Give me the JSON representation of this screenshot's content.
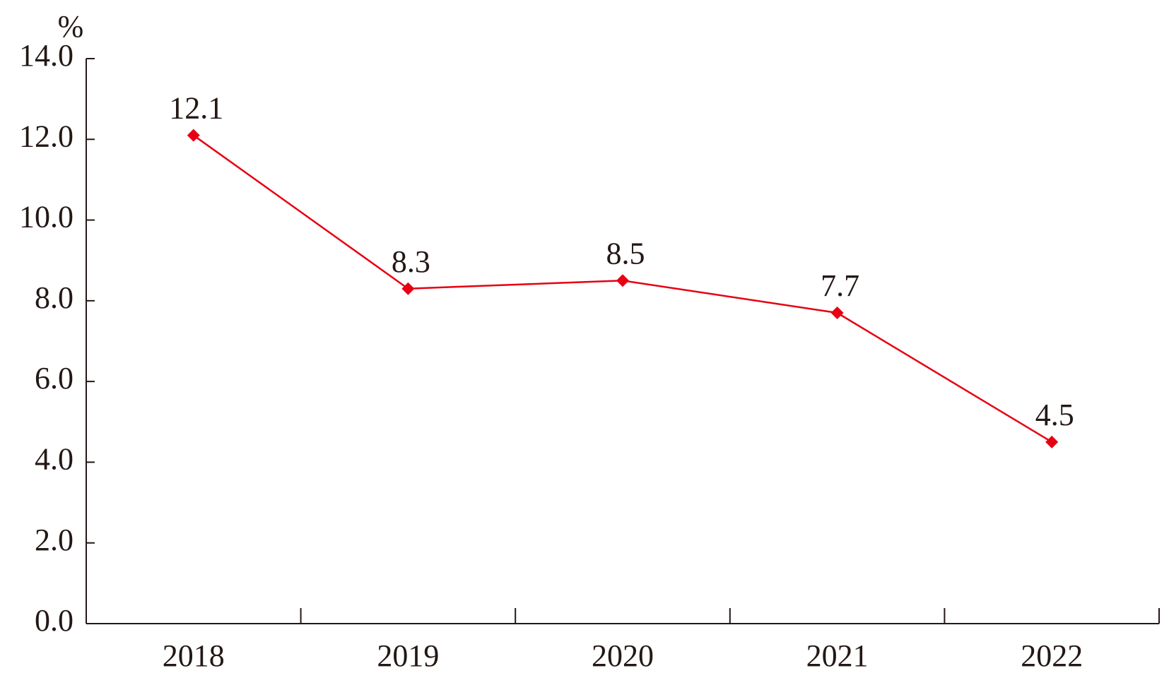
{
  "chart_data": {
    "type": "line",
    "ylabel": "%",
    "categories": [
      "2018",
      "2019",
      "2020",
      "2021",
      "2022"
    ],
    "series": [
      {
        "name": "",
        "color": "#e60012",
        "values": [
          12.1,
          8.3,
          8.5,
          7.7,
          4.5
        ]
      }
    ],
    "ylim": [
      0,
      14
    ],
    "yticks": [
      {
        "value": 0,
        "label": "0.0"
      },
      {
        "value": 2,
        "label": "2.0"
      },
      {
        "value": 4,
        "label": "4.0"
      },
      {
        "value": 6,
        "label": "6.0"
      },
      {
        "value": 8,
        "label": "8.0"
      },
      {
        "value": 10,
        "label": "10.0"
      },
      {
        "value": 12,
        "label": "12.0"
      },
      {
        "value": 14,
        "label": "14.0"
      }
    ],
    "grid": false
  }
}
